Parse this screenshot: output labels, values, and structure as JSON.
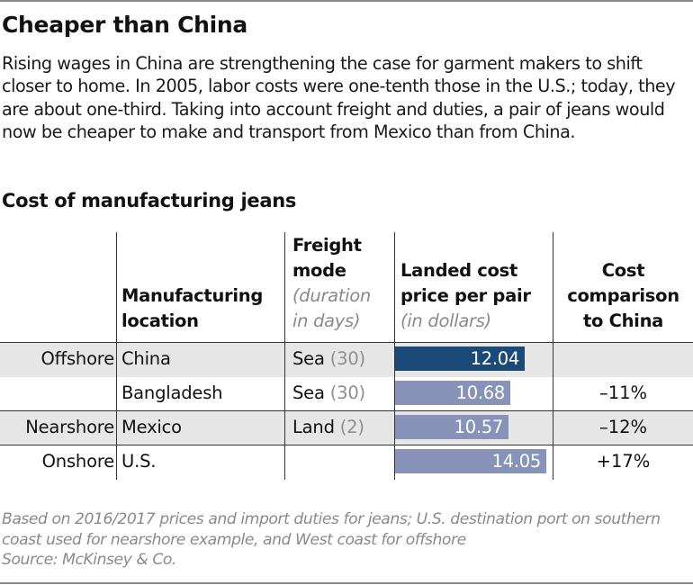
{
  "header": {
    "title": "Cheaper than China",
    "intro": "Rising wages in China are strengthening the case for garment makers to shift closer to home. In 2005, labor costs were one-tenth those in the U.S.; today, they are about one-third. Taking into account freight and duties, a pair of jeans would now be cheaper to make and transport from Mexico than from China.",
    "subtitle": "Cost of manufacturing jeans"
  },
  "colors": {
    "china_bar": "#1c4a78",
    "other_bar": "#8793b9",
    "row_shade": "#e6e6e6"
  },
  "chart_data": {
    "type": "table",
    "title": "Cost of manufacturing jeans",
    "columns": {
      "location": [
        "Manufacturing",
        "location"
      ],
      "freight": [
        "Freight",
        "mode"
      ],
      "freight_unit": [
        "(duration",
        "in days)"
      ],
      "cost": [
        "Landed cost",
        "price per pair"
      ],
      "cost_unit": "(in dollars)",
      "comparison": [
        "Cost",
        "comparison",
        "to China"
      ]
    },
    "value_max": 14.05,
    "rows": [
      {
        "group": "Offshore",
        "location": "China",
        "mode": "Sea",
        "days": "(30)",
        "cost": 12.04,
        "cost_label": "12.04",
        "comparison": "",
        "highlight": true
      },
      {
        "group": "",
        "location": "Bangladesh",
        "mode": "Sea",
        "days": "(30)",
        "cost": 10.68,
        "cost_label": "10.68",
        "comparison": "–11%",
        "highlight": false
      },
      {
        "group": "Nearshore",
        "location": "Mexico",
        "mode": "Land",
        "days": "(2)",
        "cost": 10.57,
        "cost_label": "10.57",
        "comparison": "–12%",
        "highlight": false
      },
      {
        "group": "Onshore",
        "location": "U.S.",
        "mode": "",
        "days": "",
        "cost": 14.05,
        "cost_label": "14.05",
        "comparison": "+17%",
        "highlight": false
      }
    ]
  },
  "footer": {
    "note": "Based on 2016/2017 prices and import duties for jeans; U.S. destination port on southern coast used for nearshore example, and West coast for offshore",
    "source": "Source: McKinsey & Co."
  }
}
